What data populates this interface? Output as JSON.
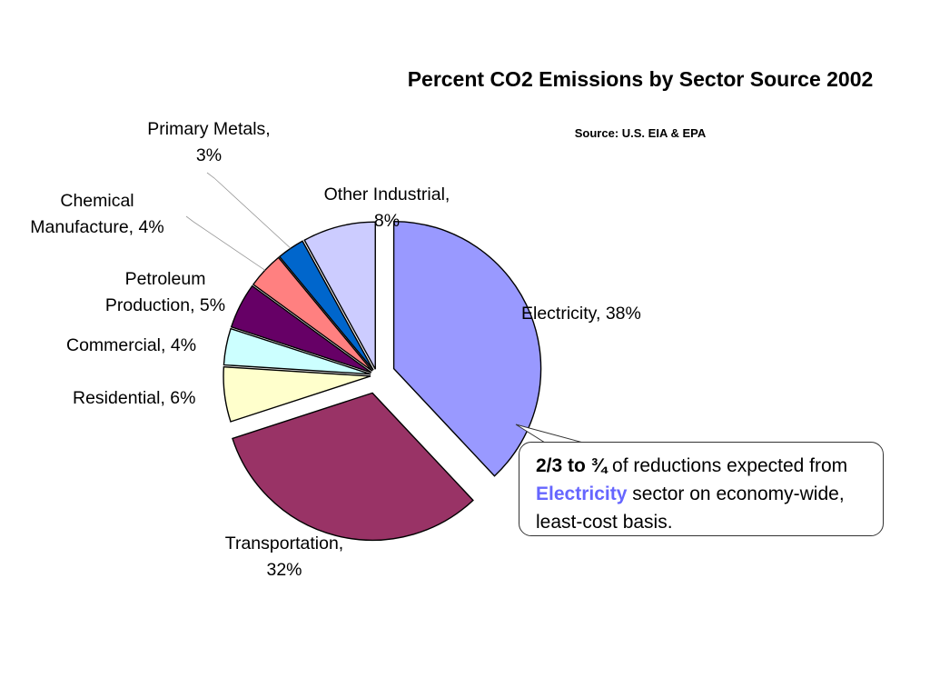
{
  "chart_data": {
    "type": "pie",
    "title": "Percent CO2 Emissions by Sector Source 2002",
    "subtitle": "Source: U.S. EIA & EPA",
    "slices": [
      {
        "label_line1": "Electricity, 38%",
        "label_line2": "",
        "value": 38,
        "color": "#9999ff",
        "exploded": true
      },
      {
        "label_line1": "Transportation,",
        "label_line2": "32%",
        "value": 32,
        "color": "#993366",
        "exploded": true
      },
      {
        "label_line1": "Residential, 6%",
        "label_line2": "",
        "value": 6,
        "color": "#ffffcc",
        "exploded": false
      },
      {
        "label_line1": "Commercial, 4%",
        "label_line2": "",
        "value": 4,
        "color": "#ccffff",
        "exploded": false
      },
      {
        "label_line1": "Petroleum",
        "label_line2": "Production, 5%",
        "value": 5,
        "color": "#660066",
        "exploded": false
      },
      {
        "label_line1": "Chemical",
        "label_line2": "Manufacture, 4%",
        "value": 4,
        "color": "#ff8080",
        "exploded": false
      },
      {
        "label_line1": "Primary Metals,",
        "label_line2": "3%",
        "value": 3,
        "color": "#0066cc",
        "exploded": false
      },
      {
        "label_line1": "Other Industrial,",
        "label_line2": "8%",
        "value": 8,
        "color": "#ccccff",
        "exploded": false
      }
    ],
    "start": "top, clockwise",
    "legend": "none (data labels)"
  },
  "callout": {
    "bold_prefix": "2/3 to ¾",
    "text_1": " of reductions expected from ",
    "highlight": "Electricity",
    "highlight_color": "#6666ff",
    "text_2": " sector on economy-wide, least-cost basis."
  }
}
